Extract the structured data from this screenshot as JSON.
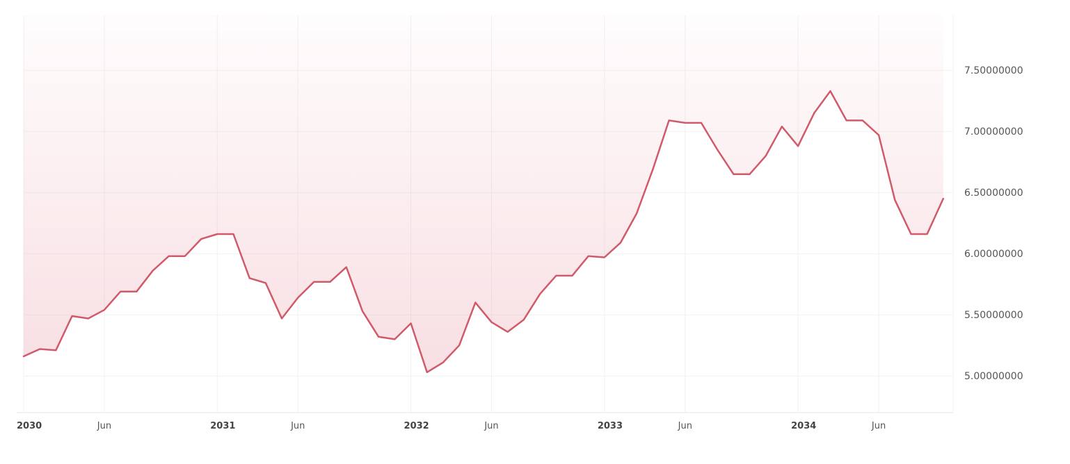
{
  "chart_data": {
    "type": "area",
    "title": "",
    "xlabel": "",
    "ylabel": "",
    "x_start": "2030-01",
    "x_step": "month",
    "x_ticks": [
      {
        "date": "2030-01",
        "label": "2030",
        "major": true
      },
      {
        "date": "2030-06",
        "label": "Jun",
        "major": false
      },
      {
        "date": "2031-01",
        "label": "2031",
        "major": true
      },
      {
        "date": "2031-06",
        "label": "Jun",
        "major": false
      },
      {
        "date": "2032-01",
        "label": "2032",
        "major": true
      },
      {
        "date": "2032-06",
        "label": "Jun",
        "major": false
      },
      {
        "date": "2033-01",
        "label": "2033",
        "major": true
      },
      {
        "date": "2033-06",
        "label": "Jun",
        "major": false
      },
      {
        "date": "2034-01",
        "label": "2034",
        "major": true
      },
      {
        "date": "2034-06",
        "label": "Jun",
        "major": false
      }
    ],
    "y_ticks": [
      5.0,
      5.5,
      6.0,
      6.5,
      7.0,
      7.5
    ],
    "y_tick_labels": [
      "5.00000000",
      "5.50000000",
      "6.00000000",
      "6.50000000",
      "7.00000000",
      "7.50000000"
    ],
    "ylim": [
      4.7,
      7.95
    ],
    "y_axis_position": "right",
    "grid": true,
    "line_color": "#d05a6a",
    "fill_color": "#e68c9b",
    "values": [
      5.16,
      5.22,
      5.21,
      5.49,
      5.47,
      5.54,
      5.69,
      5.69,
      5.86,
      5.98,
      5.98,
      6.12,
      6.16,
      6.16,
      5.8,
      5.76,
      5.47,
      5.64,
      5.77,
      5.77,
      5.89,
      5.53,
      5.32,
      5.3,
      5.43,
      5.03,
      5.11,
      5.25,
      5.6,
      5.44,
      5.36,
      5.46,
      5.67,
      5.82,
      5.82,
      5.98,
      5.97,
      6.09,
      6.33,
      6.69,
      7.09,
      7.07,
      7.07,
      6.85,
      6.65,
      6.65,
      6.8,
      7.04,
      6.88,
      7.15,
      7.33,
      7.09,
      7.09,
      6.97,
      6.44,
      6.16,
      6.16,
      6.45
    ]
  }
}
